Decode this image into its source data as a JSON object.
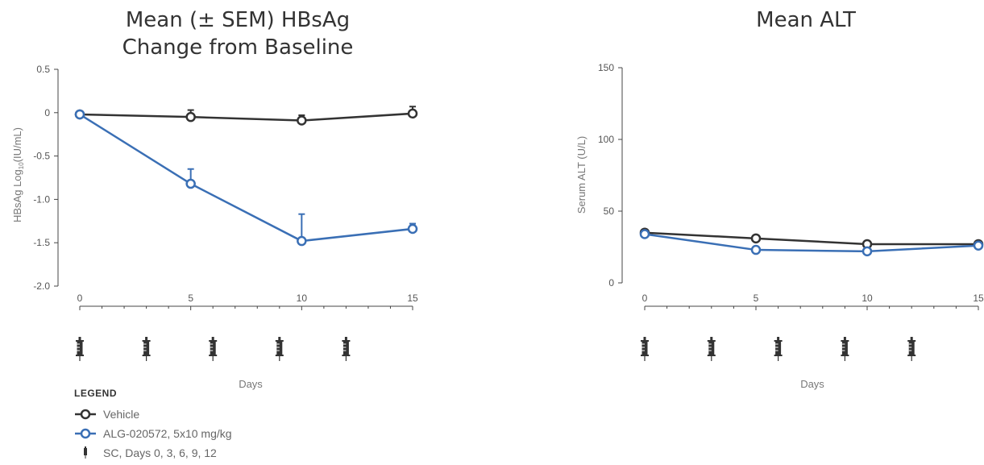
{
  "chart_data": [
    {
      "type": "line",
      "title": "Mean (± SEM) HBsAg Change from Baseline",
      "title_lines": [
        "Mean (± SEM) HBsAg",
        "Change from Baseline"
      ],
      "ylabel": "HBsAg Log10(IU/mL)",
      "ylabel_prefix": "HBsAg Log",
      "ylabel_sub": "10",
      "ylabel_suffix": "(IU/mL)",
      "xlabel": "Days",
      "ylim": [
        -2.0,
        0.5
      ],
      "xlim": [
        0,
        15
      ],
      "yticks": [
        0.5,
        0,
        -0.5,
        -1.0,
        -1.5,
        -2.0
      ],
      "ytick_labels": [
        "0.5",
        "0",
        "-0.5",
        "-1.0",
        "-1.5",
        "-2.0"
      ],
      "xticks": [
        0,
        5,
        10,
        15
      ],
      "xtick_labels": [
        "0",
        "5",
        "10",
        "15"
      ],
      "dosing_days": [
        0,
        3,
        6,
        9,
        12
      ],
      "series": [
        {
          "name": "Vehicle",
          "color": "#333333",
          "x": [
            0,
            5,
            10,
            15
          ],
          "y": [
            -0.02,
            -0.05,
            -0.09,
            -0.01
          ],
          "sem": [
            0,
            0.08,
            0.06,
            0.08
          ]
        },
        {
          "name": "ALG-020572, 5x10 mg/kg",
          "color": "#3a6fb5",
          "x": [
            0,
            5,
            10,
            15
          ],
          "y": [
            -0.02,
            -0.82,
            -1.48,
            -1.34
          ],
          "sem": [
            0,
            0.17,
            0.31,
            0.06
          ]
        }
      ]
    },
    {
      "type": "line",
      "title": "Mean ALT",
      "title_lines": [
        "Mean ALT"
      ],
      "ylabel": "Serum ALT (U/L)",
      "xlabel": "Days",
      "ylim": [
        0,
        150
      ],
      "xlim": [
        0,
        15
      ],
      "yticks": [
        150,
        100,
        50,
        0
      ],
      "ytick_labels": [
        "150",
        "100",
        "50",
        "0"
      ],
      "xticks": [
        0,
        5,
        10,
        15
      ],
      "xtick_labels": [
        "0",
        "5",
        "10",
        "15"
      ],
      "dosing_days": [
        0,
        3,
        6,
        9,
        12
      ],
      "series": [
        {
          "name": "Vehicle",
          "color": "#333333",
          "x": [
            0,
            5,
            10,
            15
          ],
          "y": [
            35,
            31,
            27,
            27
          ]
        },
        {
          "name": "ALG-020572, 5x10 mg/kg",
          "color": "#3a6fb5",
          "x": [
            0,
            5,
            10,
            15
          ],
          "y": [
            34,
            23,
            22,
            26
          ]
        }
      ]
    }
  ],
  "legend": {
    "heading": "LEGEND",
    "items": [
      {
        "label": "Vehicle",
        "icon": "circle-line-icon",
        "color": "#333333"
      },
      {
        "label": "ALG-020572, 5x10 mg/kg",
        "icon": "circle-line-icon",
        "color": "#3a6fb5"
      },
      {
        "label": "SC, Days 0, 3, 6, 9, 12",
        "icon": "syringe-icon",
        "color": "#333333"
      }
    ]
  }
}
